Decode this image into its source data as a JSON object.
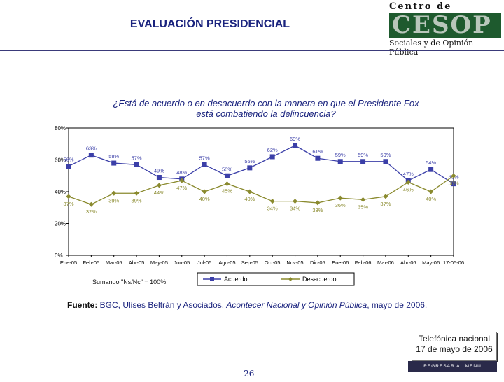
{
  "header": {
    "title": "EVALUACIÓN PRESIDENCIAL",
    "logo_top": "Centro de Estudios",
    "logo_word": "CESOP",
    "logo_bottom": "Sociales y de Opinión Pública"
  },
  "question": {
    "line1": "¿Está de acuerdo o en desacuerdo con la manera en que el Presidente Fox",
    "line2": "está combatiendo la delincuencia?"
  },
  "chart_data": {
    "type": "line",
    "categories": [
      "Ene-05",
      "Feb-05",
      "Mar-05",
      "Abr-05",
      "May-05",
      "Jun-05",
      "Jul-05",
      "Ago-05",
      "Sep-05",
      "Oct-05",
      "Nov-05",
      "Dic-05",
      "Ene-06",
      "Feb-06",
      "Mar-06",
      "Abr-06",
      "May-06",
      "17-05-06"
    ],
    "y_ticks": [
      "0%",
      "20%",
      "40%",
      "60%",
      "80%"
    ],
    "ylim": [
      0,
      80
    ],
    "series": [
      {
        "name": "Acuerdo",
        "color": "#3b3fa8",
        "marker": "square",
        "values": [
          56,
          63,
          58,
          57,
          49,
          48,
          57,
          50,
          55,
          62,
          69,
          61,
          59,
          59,
          59,
          47,
          54,
          45
        ],
        "labels": [
          "56%",
          "63%",
          "58%",
          "57%",
          "49%",
          "48%",
          "57%",
          "50%",
          "55%",
          "62%",
          "69%",
          "61%",
          "59%",
          "59%",
          "59%",
          "47%",
          "54%",
          "45%"
        ]
      },
      {
        "name": "Desacuerdo",
        "color": "#8a8a2e",
        "marker": "diamond",
        "values": [
          37,
          32,
          39,
          39,
          44,
          47,
          40,
          45,
          40,
          34,
          34,
          33,
          36,
          35,
          37,
          46,
          40,
          50
        ],
        "labels": [
          "37%",
          "32%",
          "39%",
          "39%",
          "44%",
          "47%",
          "40%",
          "45%",
          "40%",
          "34%",
          "34%",
          "33%",
          "36%",
          "35%",
          "37%",
          "46%",
          "40%",
          "50%"
        ]
      }
    ]
  },
  "note": "Sumando \"Ns/Nc\" = 100%",
  "source": {
    "label": "Fuente:",
    "text_a": " BGC, Ulises Beltrán y Asociados, ",
    "text_b": "Acontecer Nacional y Opinión Pública",
    "text_c": ", mayo de 2006."
  },
  "sticker": {
    "line1": "Telefónica nacional",
    "line2": "17 de mayo de 2006"
  },
  "menu_button": "REGRESAR AL MENU PRINCIPAL",
  "page_number": "--26--"
}
